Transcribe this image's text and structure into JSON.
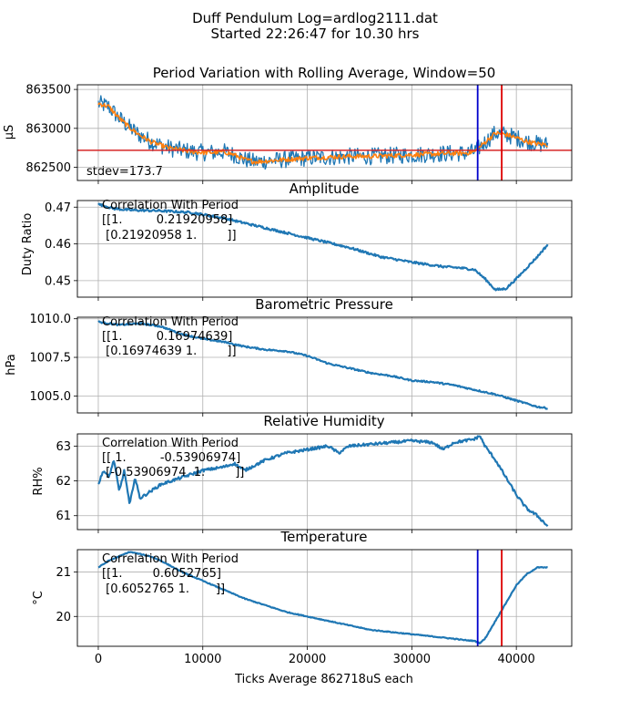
{
  "suptitle": {
    "line1": "Duff Pendulum Log=ardlog2111.dat",
    "line2": "Started 22:26:47 for 10.30 hrs"
  },
  "xlabel": "Ticks Average 862718uS each",
  "colors": {
    "series": "#1f77b4",
    "rolling": "#ff7f0e",
    "mean_line": "#d62728",
    "marker_blue": "#0000cc",
    "marker_red": "#dd0000",
    "grid": "#b0b0b0"
  },
  "chart_data": [
    {
      "type": "line",
      "id": "period",
      "title": "Period Variation with Rolling Average, Window=50",
      "ylabel": "µS",
      "xlim": [
        -2000,
        45300
      ],
      "ylim": [
        862330,
        863560
      ],
      "xticks": [
        0,
        10000,
        20000,
        30000,
        40000
      ],
      "yticks": [
        862500,
        863000,
        863500
      ],
      "annotation": "stdev=173.7",
      "mean_line": 862718,
      "vlines": [
        {
          "x": 36300,
          "color": "blue"
        },
        {
          "x": 38600,
          "color": "red"
        }
      ],
      "series": [
        {
          "role": "raw",
          "x": [
            0,
            1000,
            2000,
            3000,
            4000,
            5000,
            6000,
            7000,
            8000,
            9000,
            10000,
            11000,
            12000,
            13000,
            14000,
            15000,
            16000,
            18000,
            20000,
            22000,
            24000,
            26000,
            28000,
            30000,
            32000,
            34000,
            35000,
            36000,
            37000,
            38000,
            39000,
            40000,
            41000,
            42000,
            43000
          ],
          "y": [
            863320,
            863280,
            863130,
            863010,
            862910,
            862830,
            862780,
            862740,
            862720,
            862700,
            862690,
            862690,
            862700,
            862660,
            862600,
            862570,
            862580,
            862600,
            862620,
            862630,
            862640,
            862640,
            862650,
            862660,
            862670,
            862680,
            862680,
            862700,
            862820,
            862940,
            862920,
            862880,
            862830,
            862800,
            862790
          ],
          "noise": 110
        },
        {
          "role": "rolling",
          "x": [
            0,
            1000,
            2000,
            3000,
            4000,
            5000,
            6000,
            7000,
            8000,
            9000,
            10000,
            11000,
            12000,
            13000,
            14000,
            15000,
            16000,
            18000,
            20000,
            22000,
            24000,
            26000,
            28000,
            30000,
            32000,
            34000,
            35000,
            36000,
            37000,
            38000,
            39000,
            40000,
            41000,
            42000,
            43000
          ],
          "y": [
            863320,
            863280,
            863130,
            863010,
            862910,
            862830,
            862780,
            862740,
            862720,
            862700,
            862690,
            862690,
            862700,
            862660,
            862600,
            862570,
            862580,
            862600,
            862620,
            862630,
            862640,
            862640,
            862650,
            862660,
            862670,
            862680,
            862680,
            862700,
            862820,
            862940,
            862920,
            862880,
            862830,
            862800,
            862790
          ],
          "noise": 30
        }
      ]
    },
    {
      "type": "line",
      "id": "amplitude",
      "title": "Amplitude",
      "ylabel": "Duty Ratio",
      "xlim": [
        -2000,
        45300
      ],
      "ylim": [
        0.4455,
        0.4718
      ],
      "xticks": [
        0,
        10000,
        20000,
        30000,
        40000
      ],
      "yticks": [
        0.45,
        0.46,
        0.47
      ],
      "ytick_labels": [
        "0.45",
        "0.46",
        "0.47"
      ],
      "correlation": [
        "Correlation With Period",
        "[[1.         0.21920958]",
        " [0.21920958 1.        ]]"
      ],
      "series": [
        {
          "x": [
            0,
            1500,
            3000,
            6000,
            9000,
            12000,
            15000,
            18000,
            21000,
            24000,
            27000,
            30000,
            33000,
            34500,
            36000,
            37000,
            38000,
            39000,
            40000,
            41000,
            42000,
            43000
          ],
          "y": [
            0.4708,
            0.4696,
            0.4692,
            0.469,
            0.4685,
            0.467,
            0.465,
            0.463,
            0.461,
            0.459,
            0.4565,
            0.455,
            0.4538,
            0.4535,
            0.453,
            0.4505,
            0.4475,
            0.4478,
            0.4505,
            0.4535,
            0.4565,
            0.4598
          ],
          "noise": 0.0003
        }
      ]
    },
    {
      "type": "line",
      "id": "pressure",
      "title": "Barometric Pressure",
      "ylabel": "hPa",
      "xlim": [
        -2000,
        45300
      ],
      "ylim": [
        1003.9,
        1010.1
      ],
      "xticks": [
        0,
        10000,
        20000,
        30000,
        40000
      ],
      "yticks": [
        1005.0,
        1007.5,
        1010.0
      ],
      "ytick_labels": [
        "1005.0",
        "1007.5",
        "1010.0"
      ],
      "correlation": [
        "Correlation With Period",
        "[[1.         0.16974639]",
        " [0.16974639 1.        ]]"
      ],
      "series": [
        {
          "x": [
            0,
            2000,
            4000,
            6000,
            8000,
            10000,
            12000,
            14000,
            16000,
            18000,
            20000,
            22000,
            24000,
            26000,
            28000,
            30000,
            32000,
            34000,
            36000,
            38000,
            40000,
            42000,
            43000
          ],
          "y": [
            1009.8,
            1009.6,
            1009.7,
            1009.5,
            1009.0,
            1008.7,
            1008.5,
            1008.2,
            1008.0,
            1007.9,
            1007.6,
            1007.1,
            1006.8,
            1006.5,
            1006.3,
            1006.0,
            1005.9,
            1005.7,
            1005.4,
            1005.1,
            1004.7,
            1004.3,
            1004.2
          ],
          "noise": 0.05
        }
      ]
    },
    {
      "type": "line",
      "id": "humidity",
      "title": "Relative Humidity",
      "ylabel": "RH%",
      "xlim": [
        -2000,
        45300
      ],
      "ylim": [
        60.6,
        63.35
      ],
      "xticks": [
        0,
        10000,
        20000,
        30000,
        40000
      ],
      "yticks": [
        61,
        62,
        63
      ],
      "ytick_labels": [
        "61",
        "62",
        "63"
      ],
      "correlation": [
        "Correlation With Period",
        "[[ 1.         -0.53906974]",
        " [-0.53906974  1.        ]]"
      ],
      "series": [
        {
          "x": [
            0,
            500,
            1000,
            1500,
            2000,
            2500,
            3000,
            3500,
            4000,
            5000,
            6000,
            8000,
            10000,
            12000,
            13000,
            14000,
            16000,
            18000,
            20000,
            22000,
            23000,
            24000,
            26000,
            28000,
            30000,
            32000,
            33000,
            34000,
            35000,
            36000,
            36500,
            37000,
            38000,
            39000,
            40000,
            41000,
            42000,
            43000
          ],
          "y": [
            61.9,
            62.3,
            62.1,
            62.6,
            61.7,
            62.3,
            61.3,
            62.1,
            61.5,
            61.7,
            61.9,
            62.1,
            62.3,
            62.4,
            62.5,
            62.3,
            62.6,
            62.8,
            62.9,
            63.0,
            62.8,
            63.0,
            63.05,
            63.1,
            63.15,
            63.1,
            62.9,
            63.1,
            63.15,
            63.2,
            63.3,
            63.0,
            62.6,
            62.1,
            61.6,
            61.2,
            61.0,
            60.7
          ],
          "noise": 0.04
        }
      ]
    },
    {
      "type": "line",
      "id": "temperature",
      "title": "Temperature",
      "ylabel": "°C",
      "xlim": [
        -2000,
        45300
      ],
      "ylim": [
        19.33,
        21.5
      ],
      "xticks": [
        0,
        10000,
        20000,
        30000,
        40000
      ],
      "xtick_labels": [
        "0",
        "10000",
        "20000",
        "30000",
        "40000"
      ],
      "yticks": [
        20,
        21
      ],
      "ytick_labels": [
        "20",
        "21"
      ],
      "vlines": [
        {
          "x": 36300,
          "color": "blue"
        },
        {
          "x": 38600,
          "color": "red"
        }
      ],
      "correlation": [
        "Correlation With Period",
        "[[1.        0.6052765]",
        " [0.6052765 1.       ]]"
      ],
      "series": [
        {
          "x": [
            0,
            1000,
            2000,
            3000,
            4000,
            5000,
            6000,
            8000,
            10000,
            12000,
            14000,
            16000,
            18000,
            20000,
            22000,
            24000,
            26000,
            28000,
            30000,
            32000,
            34000,
            35000,
            36000,
            36500,
            37000,
            38000,
            39000,
            40000,
            41000,
            42000,
            43000
          ],
          "y": [
            21.1,
            21.25,
            21.35,
            21.45,
            21.4,
            21.35,
            21.25,
            21.0,
            20.8,
            20.6,
            20.4,
            20.25,
            20.1,
            20.0,
            19.9,
            19.8,
            19.7,
            19.65,
            19.6,
            19.55,
            19.5,
            19.47,
            19.45,
            19.4,
            19.5,
            19.9,
            20.3,
            20.7,
            20.95,
            21.1,
            21.1
          ],
          "noise": 0.01
        }
      ]
    }
  ]
}
